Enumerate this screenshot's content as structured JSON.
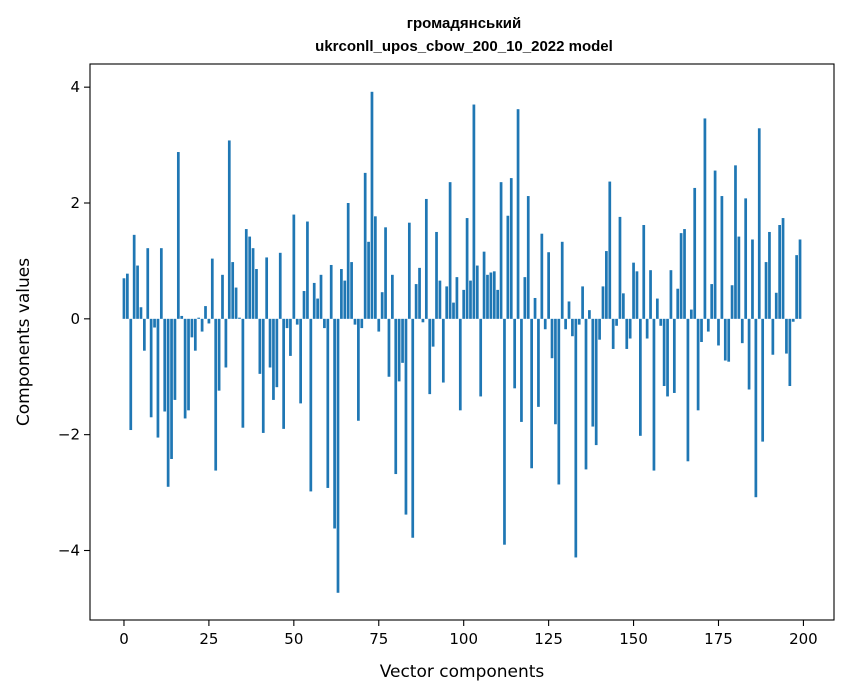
{
  "chart_data": {
    "type": "bar",
    "title_line1": "громадянський",
    "title_line2": "ukrconll_upos_cbow_200_10_2022 model",
    "xlabel": "Vector components",
    "ylabel": "Components values",
    "xlim": [
      -10,
      209
    ],
    "ylim": [
      -5.2,
      4.4
    ],
    "xticks": [
      0,
      25,
      50,
      75,
      100,
      125,
      150,
      175,
      200
    ],
    "yticks": [
      4,
      2,
      0,
      -2,
      -4
    ],
    "ytick_labels": [
      "4",
      "2",
      "0",
      "−2",
      "−4"
    ],
    "bar_color": "#1f77b4",
    "grid": false,
    "values": [
      0.7,
      0.78,
      -1.92,
      1.45,
      0.92,
      0.2,
      -0.55,
      1.22,
      -1.7,
      -0.15,
      -2.05,
      1.22,
      -1.6,
      -2.9,
      -2.42,
      -1.4,
      2.88,
      0.05,
      -1.72,
      -1.58,
      -0.32,
      -0.55,
      0.02,
      -0.22,
      0.22,
      -0.08,
      1.04,
      -2.62,
      -1.24,
      0.76,
      -0.84,
      3.08,
      0.98,
      0.54,
      0.02,
      -1.88,
      1.55,
      1.42,
      1.22,
      0.86,
      -0.95,
      -1.97,
      1.06,
      -0.84,
      -1.4,
      -1.18,
      1.14,
      -1.9,
      -0.16,
      -0.64,
      1.8,
      -0.1,
      -1.46,
      0.48,
      1.68,
      -2.98,
      0.62,
      0.35,
      0.76,
      -0.16,
      -2.92,
      0.93,
      -3.62,
      -4.73,
      0.86,
      0.66,
      2.0,
      0.98,
      -0.1,
      -1.76,
      -0.16,
      2.52,
      1.33,
      3.92,
      1.77,
      -0.22,
      0.46,
      1.58,
      -1.0,
      0.76,
      -2.68,
      -1.08,
      -0.76,
      -3.38,
      1.66,
      -3.78,
      0.6,
      0.88,
      -0.06,
      2.07,
      -1.3,
      -0.48,
      1.5,
      0.66,
      -1.1,
      0.56,
      2.36,
      0.28,
      0.72,
      -1.58,
      0.5,
      1.74,
      0.66,
      3.7,
      0.92,
      -1.34,
      1.16,
      0.76,
      0.8,
      0.82,
      0.5,
      2.36,
      -3.9,
      1.78,
      2.43,
      -1.2,
      3.62,
      -1.78,
      0.72,
      2.12,
      -2.58,
      0.36,
      -1.52,
      1.47,
      -0.18,
      1.15,
      -0.68,
      -1.82,
      -2.86,
      1.33,
      -0.18,
      0.3,
      -0.3,
      -4.12,
      -0.1,
      0.56,
      -2.6,
      0.15,
      -1.86,
      -2.18,
      -0.36,
      0.56,
      1.17,
      2.37,
      -0.52,
      -0.12,
      1.76,
      0.44,
      -0.52,
      -0.34,
      0.97,
      0.82,
      -2.02,
      1.62,
      -0.34,
      0.84,
      -2.62,
      0.35,
      -0.12,
      -1.16,
      -1.34,
      0.84,
      -1.28,
      0.52,
      1.48,
      1.55,
      -2.46,
      0.16,
      2.26,
      -1.58,
      -0.4,
      3.46,
      -0.22,
      0.6,
      2.56,
      -0.46,
      2.12,
      -0.72,
      -0.74,
      0.58,
      2.65,
      1.42,
      -0.42,
      2.08,
      -1.22,
      1.37,
      -3.08,
      3.29,
      -2.12,
      0.98,
      1.5,
      -0.62,
      0.45,
      1.62,
      1.74,
      -0.6,
      -1.16,
      -0.05,
      1.1,
      1.37
    ]
  }
}
